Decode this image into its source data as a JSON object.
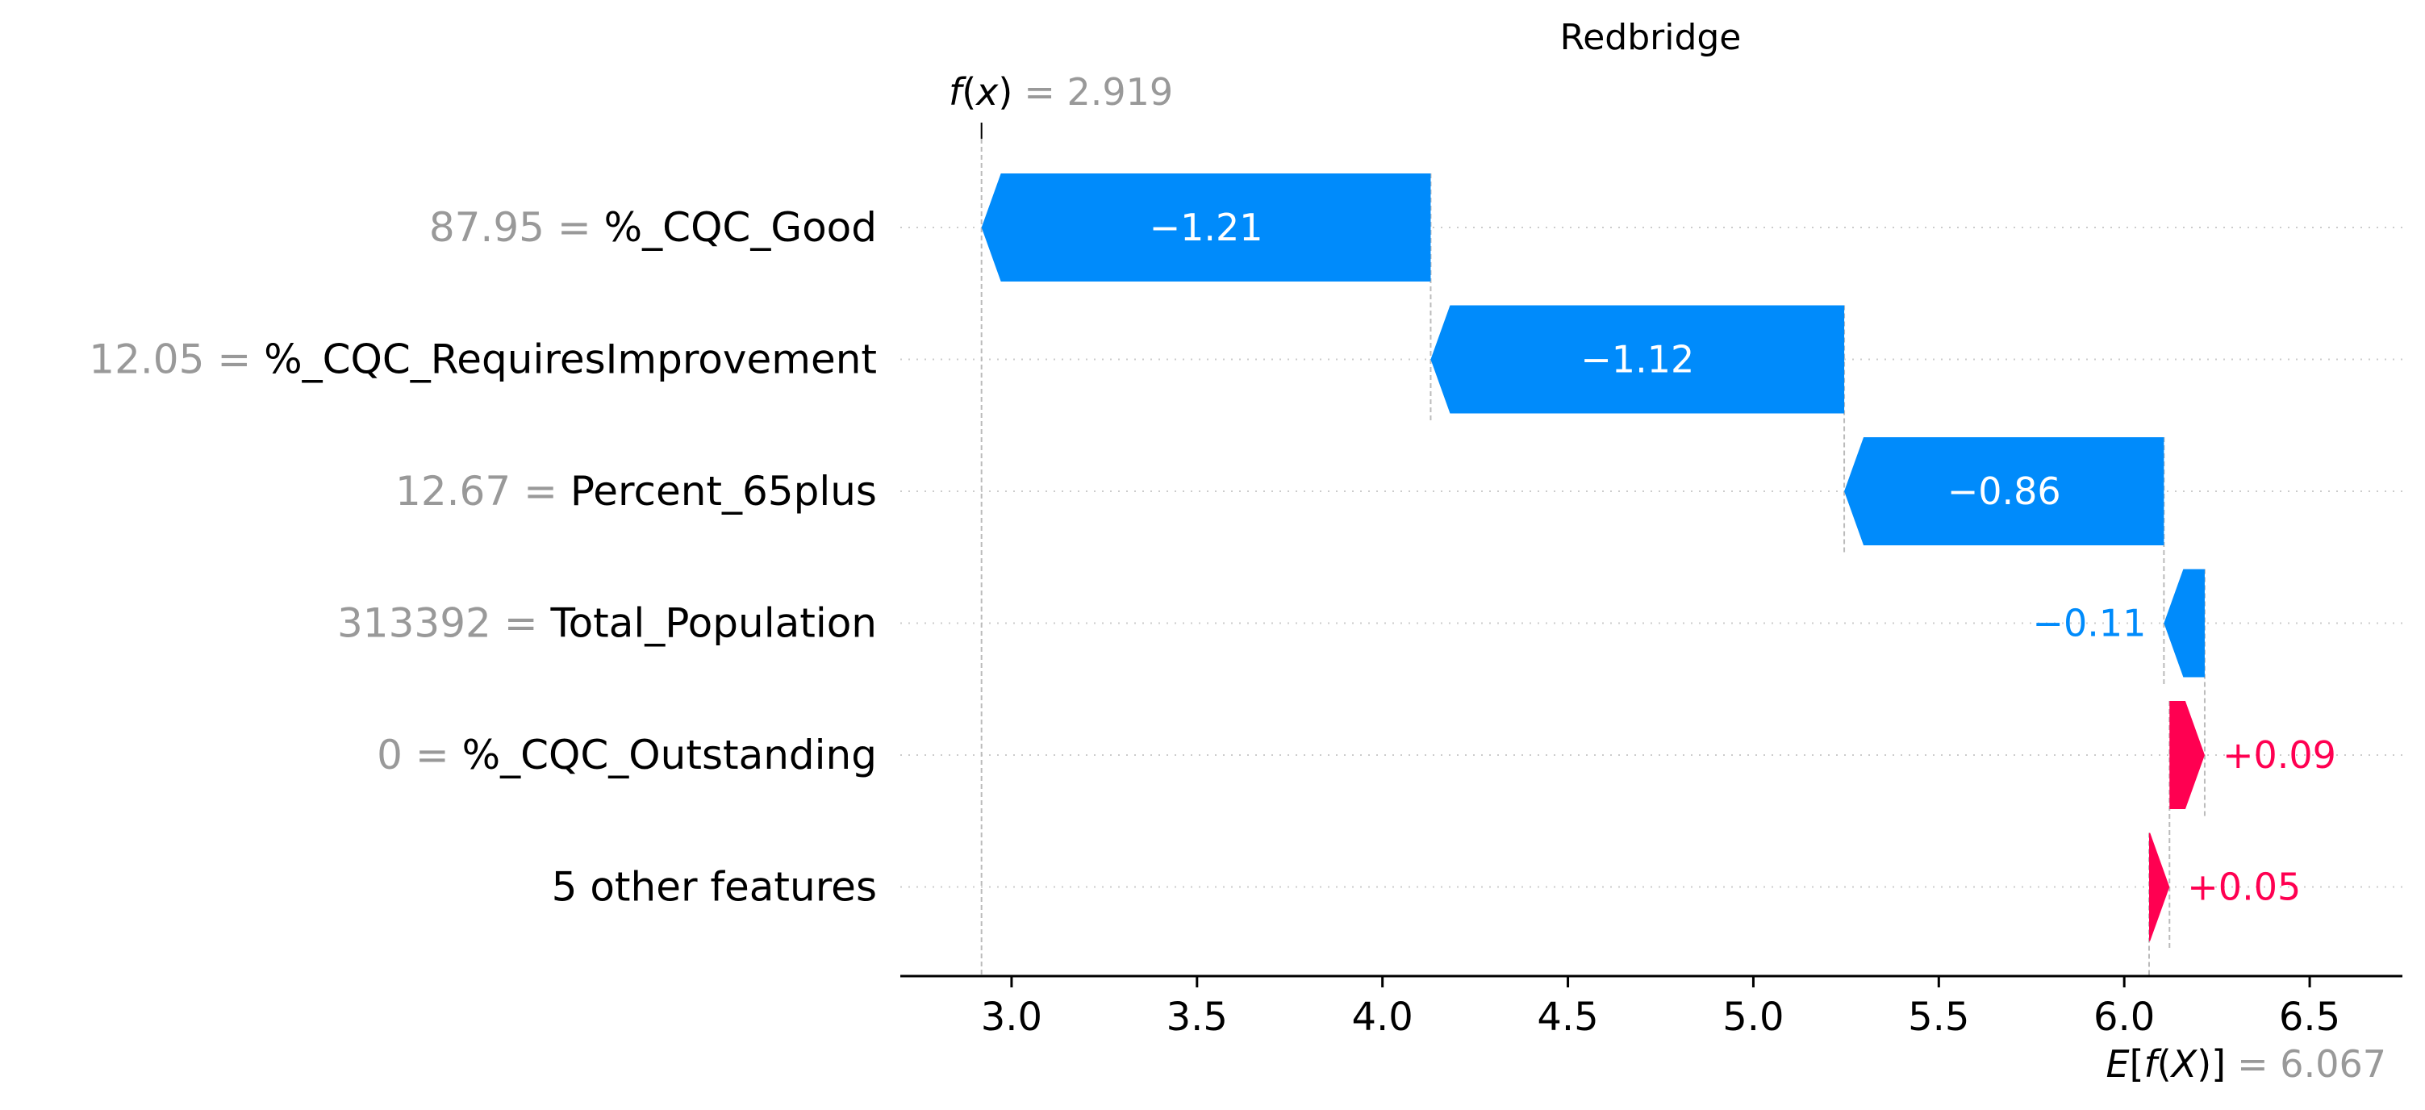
{
  "chart_data": {
    "type": "waterfall",
    "title": "Redbridge",
    "fx": {
      "prefix": "f",
      "arg": "x",
      "value_text": "= 2.919",
      "value": 2.919
    },
    "efx": {
      "prefix": "E",
      "inner": "f",
      "arg": "X",
      "value_text": "= 6.067",
      "value": 6.067
    },
    "xlim": [
      2.7,
      6.75
    ],
    "xticks": [
      3.0,
      3.5,
      4.0,
      4.5,
      5.0,
      5.5,
      6.0,
      6.5
    ],
    "xtick_labels": [
      "3.0",
      "3.5",
      "4.0",
      "4.5",
      "5.0",
      "5.5",
      "6.0",
      "6.5"
    ],
    "grid": "dotted horizontal per row",
    "features": [
      {
        "value_label": "87.95",
        "name": "%_CQC_Good",
        "start": 4.13,
        "end": 2.919,
        "shap": -1.21,
        "label": "−1.21"
      },
      {
        "value_label": "12.05",
        "name": "%_CQC_RequiresImprovement",
        "start": 5.245,
        "end": 4.13,
        "shap": -1.12,
        "label": "−1.12"
      },
      {
        "value_label": "12.67",
        "name": "Percent_65plus",
        "start": 6.107,
        "end": 5.245,
        "shap": -0.86,
        "label": "−0.86"
      },
      {
        "value_label": "313392",
        "name": "Total_Population",
        "start": 6.217,
        "end": 6.107,
        "shap": -0.11,
        "label": "−0.11"
      },
      {
        "value_label": "0",
        "name": "%_CQC_Outstanding",
        "start": 6.122,
        "end": 6.217,
        "shap": 0.09,
        "label": "+0.09"
      },
      {
        "value_label": "",
        "name": "5 other features",
        "start": 6.067,
        "end": 6.122,
        "shap": 0.05,
        "label": "+0.05"
      }
    ],
    "colors": {
      "negative": "#008bfb",
      "positive": "#ff0051",
      "value_grey": "#999999",
      "text": "#000000"
    }
  }
}
